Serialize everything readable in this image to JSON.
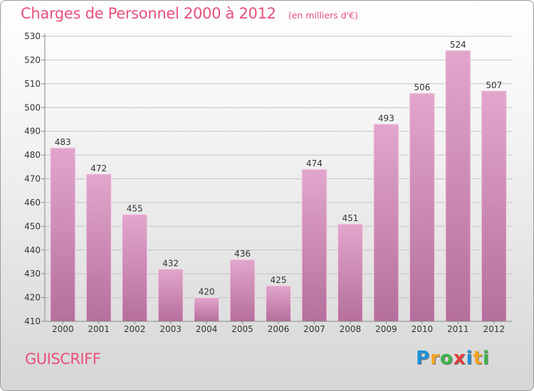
{
  "header": {
    "title": "Charges de Personnel 2000 à 2012",
    "subtitle": "(en milliers d'€)"
  },
  "footer": {
    "commune": "GUISCRIFF",
    "logo_letters": [
      "P",
      "r",
      "o",
      "x",
      "i",
      "t",
      "i"
    ],
    "logo_colors": [
      "#1f8fd6",
      "#f5a623",
      "#3db54a",
      "#e23c3c",
      "#1f8fd6",
      "#f5a623",
      "#3db54a"
    ]
  },
  "chart_data": {
    "type": "bar",
    "title": "Charges de Personnel 2000 à 2012",
    "subtitle": "(en milliers d'€)",
    "categories": [
      "2000",
      "2001",
      "2002",
      "2003",
      "2004",
      "2005",
      "2006",
      "2007",
      "2008",
      "2009",
      "2010",
      "2011",
      "2012"
    ],
    "values": [
      483,
      472,
      455,
      432,
      420,
      436,
      425,
      474,
      451,
      493,
      506,
      524,
      507
    ],
    "ylim": [
      410,
      530
    ],
    "yticks": [
      410,
      420,
      430,
      440,
      450,
      460,
      470,
      480,
      490,
      500,
      510,
      520,
      530
    ],
    "grid": true,
    "bar_color": "#e2a6cc",
    "bar_color_dark": "#b56f9c"
  }
}
